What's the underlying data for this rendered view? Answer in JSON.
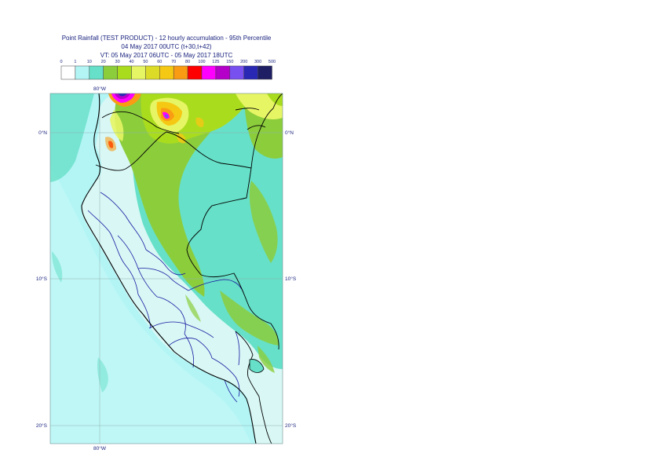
{
  "header": {
    "line1": "Point Rainfall (TEST PRODUCT) - 12 hourly accumulation - 95th Percentile",
    "line2": "04 May 2017 00UTC (t+30,t+42)",
    "line3": "VT: 05 May 2017 06UTC - 05 May 2017 18UTC"
  },
  "legend": {
    "thresholds": [
      "0",
      "1",
      "10",
      "20",
      "30",
      "40",
      "50",
      "60",
      "70",
      "80",
      "100",
      "125",
      "150",
      "200",
      "300",
      "500"
    ],
    "colors": [
      "#ffffff",
      "#b3f5f5",
      "#66e0c8",
      "#8ccd3c",
      "#aadc1e",
      "#e6f564",
      "#dcdc28",
      "#f5c814",
      "#fa9b14",
      "#ff0000",
      "#ff00ff",
      "#b400c8",
      "#7850f0",
      "#2828b4",
      "#1e1e64"
    ]
  },
  "map": {
    "lon_labels_top": [
      "80°W"
    ],
    "lon_labels_bottom": [
      "80°W"
    ],
    "lat_labels_left": [
      "0°N",
      "10°S",
      "20°S"
    ],
    "lat_labels_right": [
      "0°N",
      "10°S",
      "20°S"
    ],
    "colors": {
      "ocean_light": "#b3f5f5",
      "cyan_mid": "#66e0c8",
      "green": "#8ccd3c",
      "yellow_green": "#aadc1e",
      "coast_light": "#d8f7f5",
      "country_border": "#000000",
      "region_border": "#1a1aa0",
      "grid": "#7f9fa0"
    }
  }
}
